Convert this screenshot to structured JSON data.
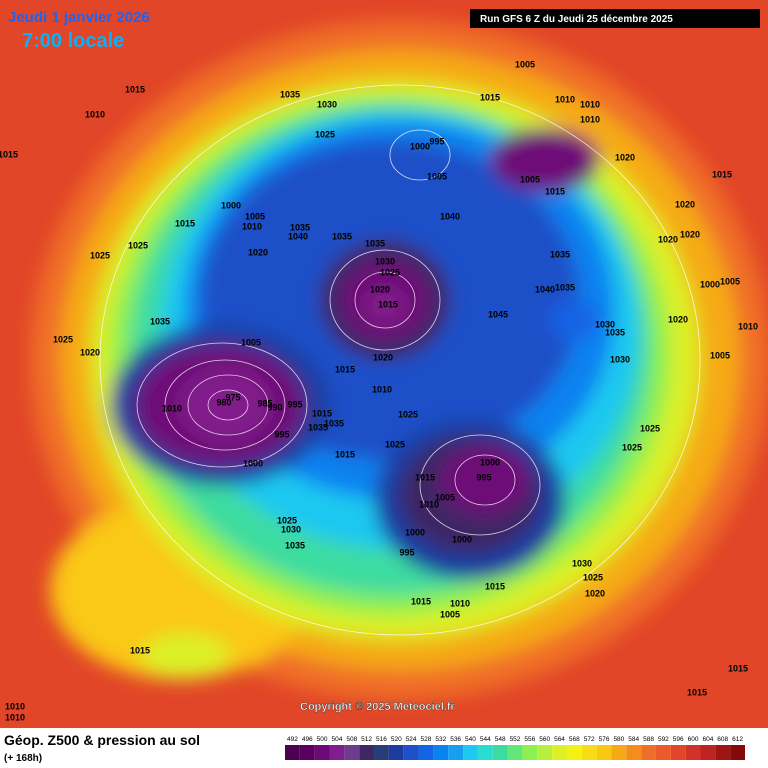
{
  "header": {
    "date": "Jeudi 1 janvier 2026",
    "time": "7:00 locale",
    "run": "Run GFS 6 Z du Jeudi 25 décembre 2025"
  },
  "copyright": "Copyright © 2025 Meteociel.fr",
  "legend": {
    "title": "Géop. Z500 & pression au sol",
    "subtitle": "(+ 168h)",
    "scale": {
      "labels": [
        "492",
        "496",
        "500",
        "504",
        "508",
        "512",
        "516",
        "520",
        "524",
        "528",
        "532",
        "536",
        "540",
        "544",
        "548",
        "552",
        "556",
        "560",
        "564",
        "568",
        "572",
        "576",
        "580",
        "584",
        "588",
        "592",
        "596",
        "600",
        "604",
        "608",
        "612"
      ],
      "colors": [
        "#4b0050",
        "#5a0060",
        "#6e0a78",
        "#821e8c",
        "#6e3c8c",
        "#3c2864",
        "#283c78",
        "#1e3ca0",
        "#1e50c8",
        "#1464e6",
        "#0a82f0",
        "#14a0f0",
        "#1ec8f0",
        "#28dcd2",
        "#3cdca0",
        "#64e678",
        "#8cf050",
        "#b4f03c",
        "#dcf028",
        "#f5f014",
        "#fadc14",
        "#fac814",
        "#f5aa14",
        "#f58c1e",
        "#f06e28",
        "#eb5a28",
        "#e14628",
        "#d23228",
        "#be2323",
        "#a01414",
        "#820a0a"
      ]
    }
  },
  "isobar_labels": [
    "1015",
    "1010",
    "1015",
    "1035",
    "1030",
    "1025",
    "1005",
    "1015",
    "1010",
    "1010",
    "1010",
    "1000",
    "995",
    "1005",
    "1005",
    "1015",
    "1020",
    "1015",
    "1020",
    "1020",
    "1020",
    "1040",
    "1000",
    "1005",
    "1010",
    "1035",
    "1040",
    "1035",
    "1035",
    "1035",
    "1015",
    "1025",
    "1025",
    "1020",
    "1030",
    "1025",
    "1020",
    "1015",
    "1040",
    "1035",
    "1045",
    "1035",
    "1025",
    "1020",
    "1005",
    "1030",
    "1035",
    "1020",
    "1000",
    "1005",
    "1010",
    "1005",
    "1030",
    "1020",
    "1015",
    "1010",
    "1010",
    "980",
    "975",
    "985",
    "990",
    "995",
    "1015",
    "1035",
    "1035",
    "995",
    "1025",
    "1025",
    "1015",
    "1000",
    "1000",
    "995",
    "1015",
    "1005",
    "1010",
    "1025",
    "1030",
    "1035",
    "1000",
    "1000",
    "995",
    "1030",
    "1025",
    "1020",
    "1015",
    "1015",
    "1010",
    "1005",
    "1015",
    "1025",
    "1025",
    "1015",
    "1015",
    "1010",
    "1010"
  ]
}
